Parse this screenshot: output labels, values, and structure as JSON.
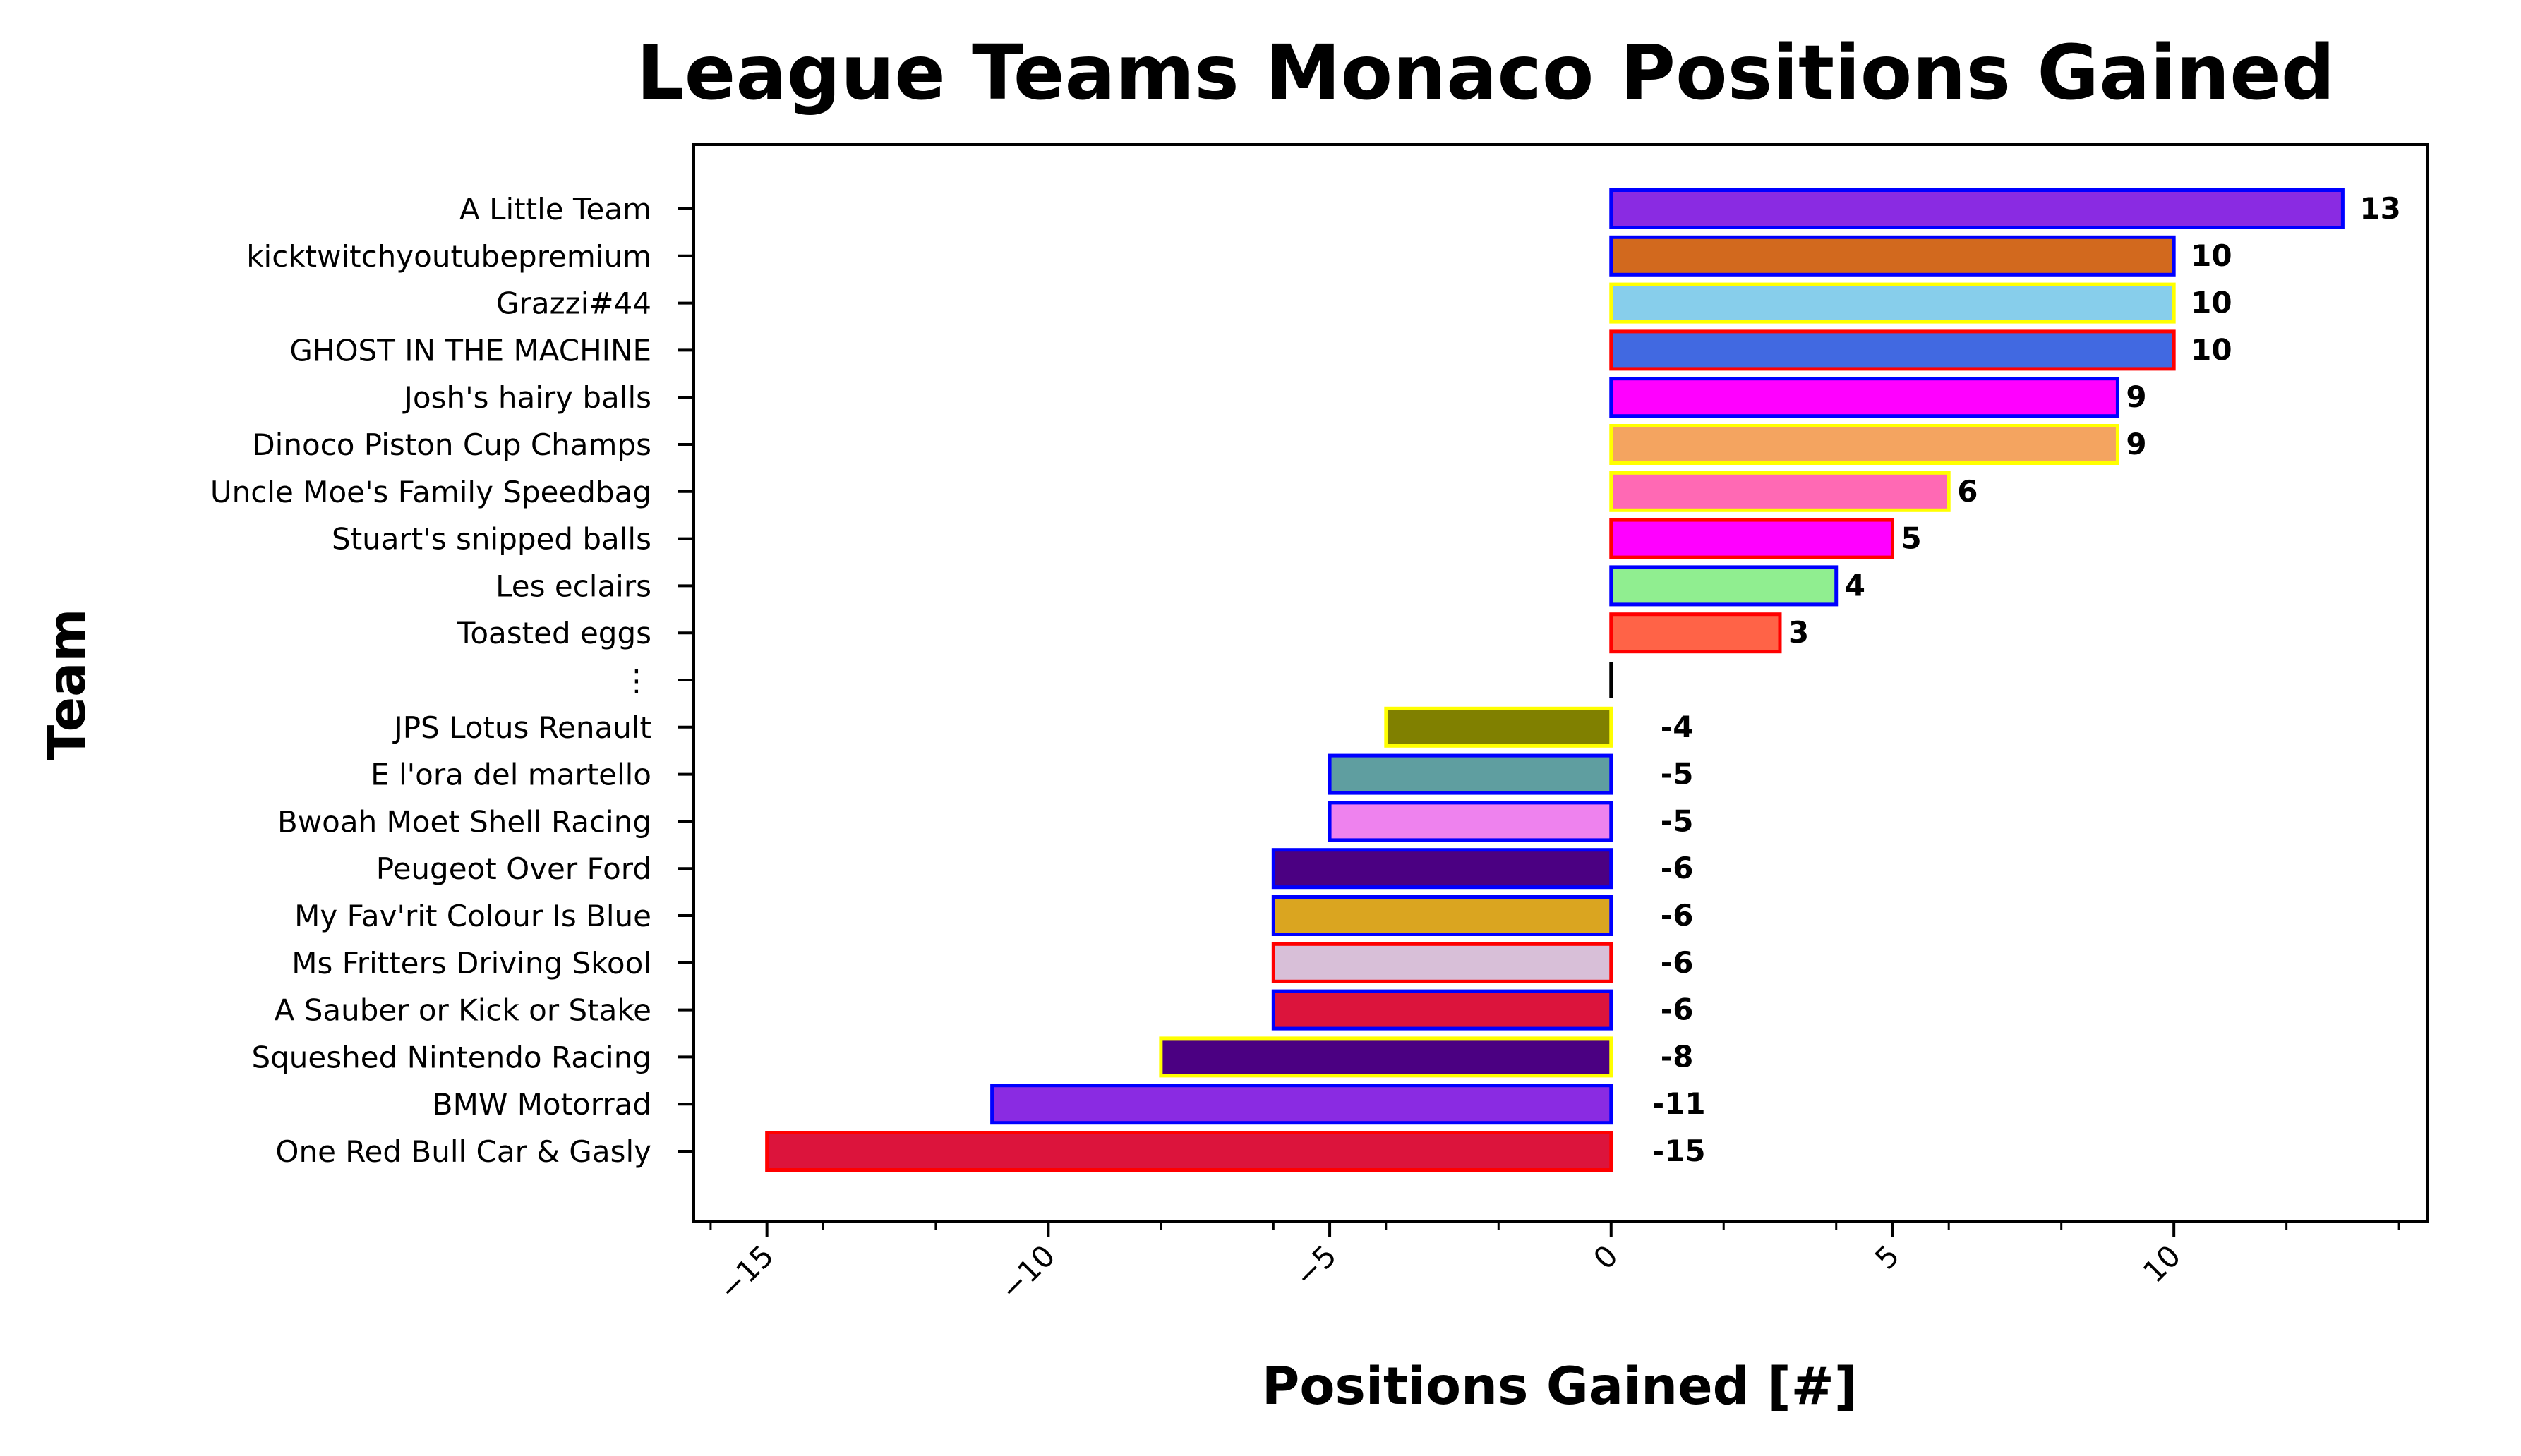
{
  "chart_data": {
    "type": "bar",
    "orientation": "horizontal",
    "title": "League Teams Monaco Positions Gained",
    "xlabel": "Positions Gained [#]",
    "ylabel": "Team",
    "xlim": [
      -16.3,
      14.5
    ],
    "xticks": [
      -15,
      -10,
      -5,
      0,
      5,
      10
    ],
    "xtick_labels": [
      "−15",
      "−10",
      "−5",
      "0",
      "5",
      "10"
    ],
    "grid": false,
    "legend": "none",
    "categories": [
      "A Little Team",
      "kicktwitchyoutubepremium",
      "Grazzi#44",
      "GHOST IN THE MACHINE",
      "Josh's hairy balls",
      "Dinoco Piston Cup Champs",
      "Uncle Moe's Family Speedbag",
      "Stuart's snipped balls",
      "Les eclairs",
      "Toasted eggs",
      "⋮",
      "JPS Lotus Renault",
      "E l'ora del martello",
      "Bwoah Moet Shell Racing",
      "Peugeot Over Ford",
      "My Fav'rit Colour Is Blue",
      "Ms Fritters Driving Skool",
      "A Sauber or Kick or Stake",
      "Squeshed Nintendo Racing",
      "BMW Motorrad",
      "One Red Bull Car & Gasly"
    ],
    "values": [
      13,
      10,
      10,
      10,
      9,
      9,
      6,
      5,
      4,
      3,
      null,
      -4,
      -5,
      -5,
      -6,
      -6,
      -6,
      -6,
      -8,
      -11,
      -15
    ],
    "value_labels": [
      "13",
      "10",
      "10",
      "10",
      "9",
      "9",
      "6",
      "5",
      "4",
      "3",
      "",
      "-4",
      "-5",
      "-5",
      "-6",
      "-6",
      "-6",
      "-6",
      "-8",
      "-11",
      "-15"
    ],
    "fill_colors": [
      "#8a2be2",
      "#d2691e",
      "#87ceeb",
      "#4169e1",
      "#ff00ff",
      "#f4a460",
      "#ff69b4",
      "#ff00ff",
      "#90ee90",
      "#ff6347",
      null,
      "#808000",
      "#5f9ea0",
      "#ee82ee",
      "#4b0082",
      "#daa520",
      "#d8bfd8",
      "#dc143c",
      "#4b0082",
      "#8a2be2",
      "#dc143c"
    ],
    "edge_colors": [
      "#0000ff",
      "#0000ff",
      "#ffff00",
      "#ff0000",
      "#0000ff",
      "#ffff00",
      "#ffff00",
      "#ff0000",
      "#0000ff",
      "#ff0000",
      null,
      "#ffff00",
      "#0000ff",
      "#0000ff",
      "#0000ff",
      "#0000ff",
      "#ff0000",
      "#0000ff",
      "#ffff00",
      "#0000ff",
      "#ff0000"
    ]
  }
}
